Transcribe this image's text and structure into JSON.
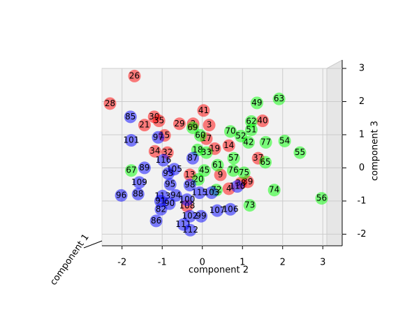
{
  "chart_data": {
    "type": "scatter",
    "xlabel": "component 2",
    "ylabel": "component 3",
    "zlabel": "component 1",
    "xlim": [
      -2.5,
      3.1
    ],
    "ylim": [
      -2.35,
      3.0
    ],
    "xticks": [
      -2,
      -1,
      0,
      1,
      2,
      3
    ],
    "yticks": [
      -2,
      -1,
      0,
      1,
      2,
      3
    ],
    "grid": true,
    "series": [
      {
        "color": "#ff0000",
        "labels": [
          "26",
          "28",
          "30",
          "21",
          "35",
          "29",
          "2",
          "41",
          "3",
          "40",
          "15",
          "17",
          "34",
          "32",
          "19",
          "14",
          "37",
          "9",
          "4",
          "39",
          "38",
          "108",
          "13"
        ],
        "x": [
          -1.69,
          -2.3,
          -1.2,
          -1.44,
          -1.08,
          -0.57,
          -0.23,
          0.03,
          0.17,
          1.5,
          -0.94,
          0.1,
          -1.18,
          -0.87,
          0.31,
          0.66,
          1.39,
          0.45,
          0.66,
          1.13,
          0.96,
          -0.38,
          -0.31
        ],
        "y": [
          2.77,
          1.94,
          1.54,
          1.29,
          1.42,
          1.33,
          1.33,
          1.73,
          1.29,
          1.42,
          0.98,
          0.88,
          0.5,
          0.46,
          0.58,
          0.67,
          0.29,
          -0.21,
          -0.63,
          -0.42,
          -0.46,
          -1.15,
          -0.21
        ]
      },
      {
        "color": "#00ff00",
        "labels": [
          "49",
          "63",
          "62",
          "51",
          "70",
          "52",
          "42",
          "54",
          "77",
          "55",
          "65",
          "74",
          "73",
          "56",
          "67",
          "69",
          "60",
          "18",
          "45",
          "61",
          "76",
          "75",
          "72",
          "20",
          "57",
          "33"
        ],
        "x": [
          1.36,
          1.91,
          1.22,
          1.22,
          0.7,
          0.96,
          1.15,
          2.05,
          1.58,
          2.43,
          1.57,
          1.79,
          1.18,
          2.97,
          -1.77,
          -0.24,
          -0.05,
          -0.12,
          0.05,
          0.38,
          0.77,
          1.04,
          0.35,
          -0.1,
          0.78,
          0.1
        ],
        "y": [
          1.96,
          2.08,
          1.4,
          1.15,
          1.1,
          0.96,
          0.77,
          0.81,
          0.77,
          0.46,
          0.17,
          -0.67,
          -1.13,
          -0.92,
          -0.08,
          1.21,
          0.98,
          0.54,
          -0.08,
          0.08,
          -0.08,
          -0.15,
          -0.67,
          -0.35,
          0.29,
          0.46
        ]
      },
      {
        "color": "#0000ff",
        "labels": [
          "85",
          "101",
          "97",
          "116",
          "89",
          "105",
          "93",
          "109",
          "95",
          "96",
          "88",
          "113",
          "94",
          "91",
          "90",
          "82",
          "100",
          "115",
          "103",
          "107",
          "106",
          "99",
          "102",
          "86",
          "111",
          "112",
          "98",
          "87",
          "110"
        ],
        "x": [
          -1.79,
          -1.77,
          -1.1,
          -0.97,
          -1.44,
          -0.7,
          -0.85,
          -1.57,
          -0.8,
          -2.02,
          -1.6,
          -0.99,
          -0.66,
          -1.04,
          -0.82,
          -1.03,
          -0.38,
          -0.07,
          0.23,
          0.37,
          0.7,
          -0.03,
          -0.31,
          -1.15,
          -0.47,
          -0.3,
          -0.31,
          -0.24,
          0.87
        ],
        "y": [
          1.54,
          0.83,
          0.92,
          0.23,
          0.0,
          -0.04,
          -0.17,
          -0.44,
          -0.5,
          -0.83,
          -0.79,
          -0.85,
          -0.83,
          -1.0,
          -1.08,
          -1.25,
          -0.96,
          -0.75,
          -0.75,
          -1.29,
          -1.25,
          -1.46,
          -1.46,
          -1.6,
          -1.71,
          -1.88,
          -0.52,
          0.29,
          -0.56
        ]
      }
    ]
  }
}
